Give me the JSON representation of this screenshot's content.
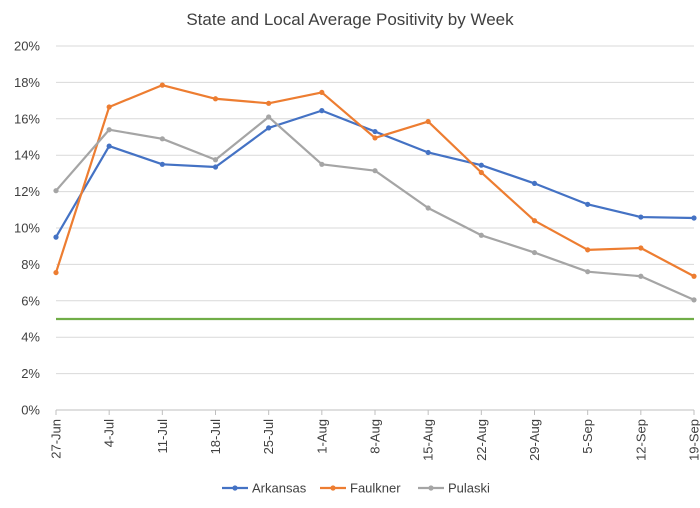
{
  "chart_data": {
    "type": "line",
    "title": "State and Local Average Positivity by Week",
    "xlabel": "",
    "ylabel": "",
    "ylim": [
      0,
      20
    ],
    "y_ticks": [
      "0%",
      "2%",
      "4%",
      "6%",
      "8%",
      "10%",
      "12%",
      "14%",
      "16%",
      "18%",
      "20%"
    ],
    "categories": [
      "27-Jun",
      "4-Jul",
      "11-Jul",
      "18-Jul",
      "25-Jul",
      "1-Aug",
      "8-Aug",
      "15-Aug",
      "22-Aug",
      "29-Aug",
      "5-Sep",
      "12-Sep",
      "19-Sep"
    ],
    "series": [
      {
        "name": "Arkansas",
        "color": "#4472C4",
        "values": [
          9.5,
          14.5,
          13.5,
          13.35,
          15.5,
          16.45,
          15.3,
          14.15,
          13.45,
          12.45,
          11.3,
          10.6,
          10.55
        ]
      },
      {
        "name": "Faulkner",
        "color": "#ED7D31",
        "values": [
          7.55,
          16.65,
          17.85,
          17.1,
          16.85,
          17.45,
          14.95,
          15.85,
          13.05,
          10.4,
          8.8,
          8.9,
          7.35
        ]
      },
      {
        "name": "Pulaski",
        "color": "#A5A5A5",
        "values": [
          12.05,
          15.4,
          14.9,
          13.75,
          16.1,
          13.5,
          13.15,
          11.1,
          9.6,
          8.65,
          7.6,
          7.35,
          6.05
        ]
      }
    ],
    "reference_line": {
      "value": 5,
      "color": "#70AD47"
    },
    "grid": true,
    "legend": "bottom"
  }
}
